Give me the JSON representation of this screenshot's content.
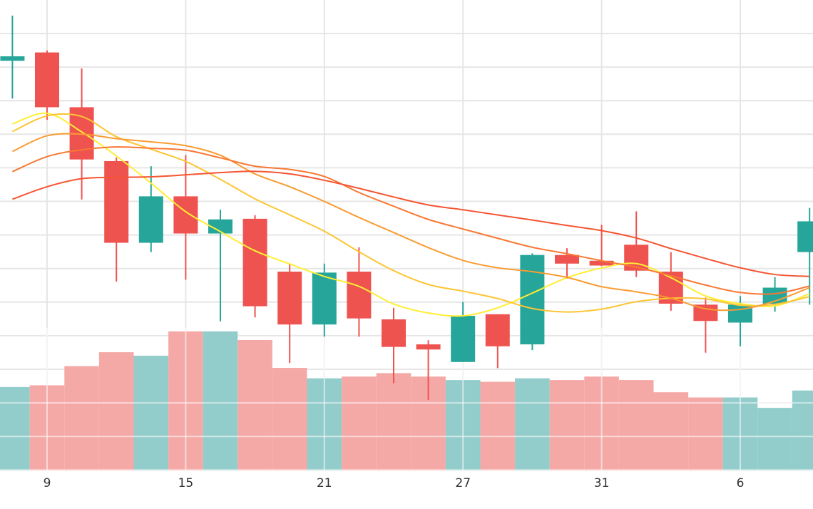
{
  "chart_data": {
    "type": "candlestick",
    "title": "",
    "xlabel": "",
    "ylabel": "",
    "grid": true,
    "legend": "none",
    "x_ticks": [
      "9",
      "15",
      "21",
      "27",
      "31",
      "6"
    ],
    "candles": [
      {
        "x": 0,
        "open": 180.7,
        "close": 182.1,
        "high": 194.8,
        "low": 168.9
      },
      {
        "x": 1,
        "open": 183.3,
        "close": 166.2,
        "high": 183.9,
        "low": 162.3
      },
      {
        "x": 2,
        "open": 166.2,
        "close": 149.9,
        "high": 178.3,
        "low": 137.4
      },
      {
        "x": 3,
        "open": 149.4,
        "close": 123.9,
        "high": 150.5,
        "low": 111.8
      },
      {
        "x": 4,
        "open": 123.9,
        "close": 138.4,
        "high": 147.8,
        "low": 121.0
      },
      {
        "x": 5,
        "open": 138.4,
        "close": 126.8,
        "high": 151.3,
        "low": 112.4
      },
      {
        "x": 6,
        "open": 126.8,
        "close": 131.2,
        "high": 134.2,
        "low": 99.4
      },
      {
        "x": 7,
        "open": 131.4,
        "close": 104.1,
        "high": 132.5,
        "low": 100.6
      },
      {
        "x": 8,
        "open": 114.9,
        "close": 98.4,
        "high": 117.4,
        "low": 86.4
      },
      {
        "x": 9,
        "open": 98.4,
        "close": 114.6,
        "high": 117.4,
        "low": 94.6
      },
      {
        "x": 10,
        "open": 114.9,
        "close": 100.3,
        "high": 122.5,
        "low": 94.6
      },
      {
        "x": 11,
        "open": 100.0,
        "close": 91.4,
        "high": 103.6,
        "low": 80.1
      },
      {
        "x": 12,
        "open": 92.2,
        "close": 90.6,
        "high": 93.5,
        "low": 74.9
      },
      {
        "x": 13,
        "open": 86.7,
        "close": 101.1,
        "high": 105.4,
        "low": 86.7
      },
      {
        "x": 14,
        "open": 101.6,
        "close": 91.6,
        "high": 101.6,
        "low": 84.8
      },
      {
        "x": 15,
        "open": 92.2,
        "close": 120.1,
        "high": 120.6,
        "low": 90.4
      },
      {
        "x": 16,
        "open": 120.1,
        "close": 117.4,
        "high": 122.2,
        "low": 112.7
      },
      {
        "x": 17,
        "open": 118.3,
        "close": 116.8,
        "high": 129.5,
        "low": 116.6
      },
      {
        "x": 18,
        "open": 123.3,
        "close": 115.2,
        "high": 133.7,
        "low": 113.2
      },
      {
        "x": 19,
        "open": 114.9,
        "close": 104.9,
        "high": 121.0,
        "low": 102.7
      },
      {
        "x": 20,
        "open": 104.6,
        "close": 99.5,
        "high": 106.8,
        "low": 89.6
      },
      {
        "x": 21,
        "open": 99.0,
        "close": 104.6,
        "high": 107.3,
        "low": 91.6
      },
      {
        "x": 22,
        "open": 104.9,
        "close": 109.9,
        "high": 113.2,
        "low": 102.4
      },
      {
        "x": 23,
        "open": 121.0,
        "close": 130.6,
        "high": 134.8,
        "low": 104.6
      }
    ],
    "moving_averages": [
      {
        "color": "#ffee33",
        "values": [
          161.0,
          164.3,
          158.5,
          151.0,
          142.5,
          133.6,
          127.4,
          121.4,
          117.3,
          113.4,
          110.3,
          104.8,
          102.0,
          101.1,
          103.6,
          108.2,
          113.0,
          116.0,
          117.4,
          113.0,
          107.3,
          104.9,
          104.2,
          108.0
        ]
      },
      {
        "color": "#fdc533",
        "values": [
          158.6,
          163.5,
          163.3,
          157.0,
          153.1,
          149.3,
          143.7,
          137.6,
          132.6,
          127.5,
          121.1,
          115.2,
          110.9,
          108.8,
          106.5,
          103.4,
          102.3,
          103.2,
          105.5,
          106.6,
          106.4,
          104.4,
          104.7,
          107.1
        ]
      },
      {
        "color": "#fa9c33",
        "values": [
          152.4,
          157.3,
          157.8,
          156.4,
          155.4,
          154.2,
          151.2,
          145.4,
          141.4,
          136.8,
          131.8,
          127.1,
          122.4,
          118.4,
          116.1,
          114.9,
          113.1,
          110.2,
          108.6,
          106.6,
          103.3,
          103.1,
          105.7,
          109.9
        ]
      },
      {
        "color": "#f87833",
        "values": [
          146.1,
          150.8,
          152.9,
          153.8,
          153.4,
          152.8,
          150.4,
          147.8,
          146.8,
          144.6,
          139.6,
          135.3,
          131.2,
          128.2,
          125.3,
          122.5,
          120.5,
          118.3,
          116.3,
          113.6,
          110.7,
          108.4,
          108.0,
          110.4
        ]
      },
      {
        "color": "#f55533",
        "values": [
          137.5,
          141.4,
          143.9,
          144.3,
          144.5,
          145.1,
          145.8,
          146.2,
          145.4,
          143.4,
          140.9,
          138.2,
          135.7,
          134.2,
          132.6,
          131.0,
          129.3,
          127.7,
          125.4,
          122.1,
          119.0,
          116.1,
          114.0,
          113.4
        ]
      }
    ],
    "volume": [
      48,
      49,
      60,
      68,
      66,
      80,
      80,
      75,
      59,
      53,
      54,
      56,
      54,
      52,
      51,
      53,
      52,
      54,
      52,
      45,
      42,
      42,
      36,
      46
    ],
    "colors": {
      "up": "#26a69a",
      "down": "#ef5350",
      "volume_up": "#92cdcb",
      "volume_down": "#f5a9a7",
      "grid": "#e6e6e6",
      "bg": "#ffffff"
    }
  }
}
